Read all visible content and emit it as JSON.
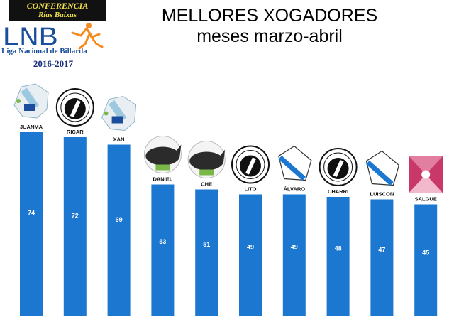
{
  "header": {
    "conference_line1": "CONFERENCIA",
    "conference_line2": "Rías Baixas",
    "league_abbrev": "LNB",
    "league_name": "Liga Nacional de Billarda",
    "season": "2016-2017"
  },
  "colors": {
    "bar": "#1b77d0",
    "value_label": "#ffffff",
    "name_label": "#111111",
    "conference_bg": "#111111",
    "conference_text": "#f0e048",
    "lnb_blue": "#1a4e9c",
    "lnb_orange": "#f58a1f"
  },
  "chart_data": {
    "type": "bar",
    "title": "MELLORES XOGADORES",
    "subtitle": "meses marzo-abril",
    "categories": [
      "JUANMA",
      "RICAR",
      "XAN",
      "DANIEL",
      "CHE",
      "LITO",
      "ÁLVARO",
      "CHARRI",
      "LUISCON",
      "SALGUE"
    ],
    "values": [
      74,
      72,
      69,
      53,
      51,
      49,
      49,
      48,
      47,
      45
    ],
    "club_emblems": [
      "galicia-map-emblem",
      "clube-correderas-emblem",
      "galicia-map-emblem",
      "rhino-emblem",
      "rhino-emblem",
      "clube-correderas-emblem",
      "galicia-flag-emblem",
      "clube-correderas-emblem",
      "galicia-flag-emblem",
      "pink-geometric-emblem"
    ],
    "xlabel": "",
    "ylabel": "",
    "ylim": [
      0,
      80
    ],
    "grid": false,
    "legend": "none"
  }
}
